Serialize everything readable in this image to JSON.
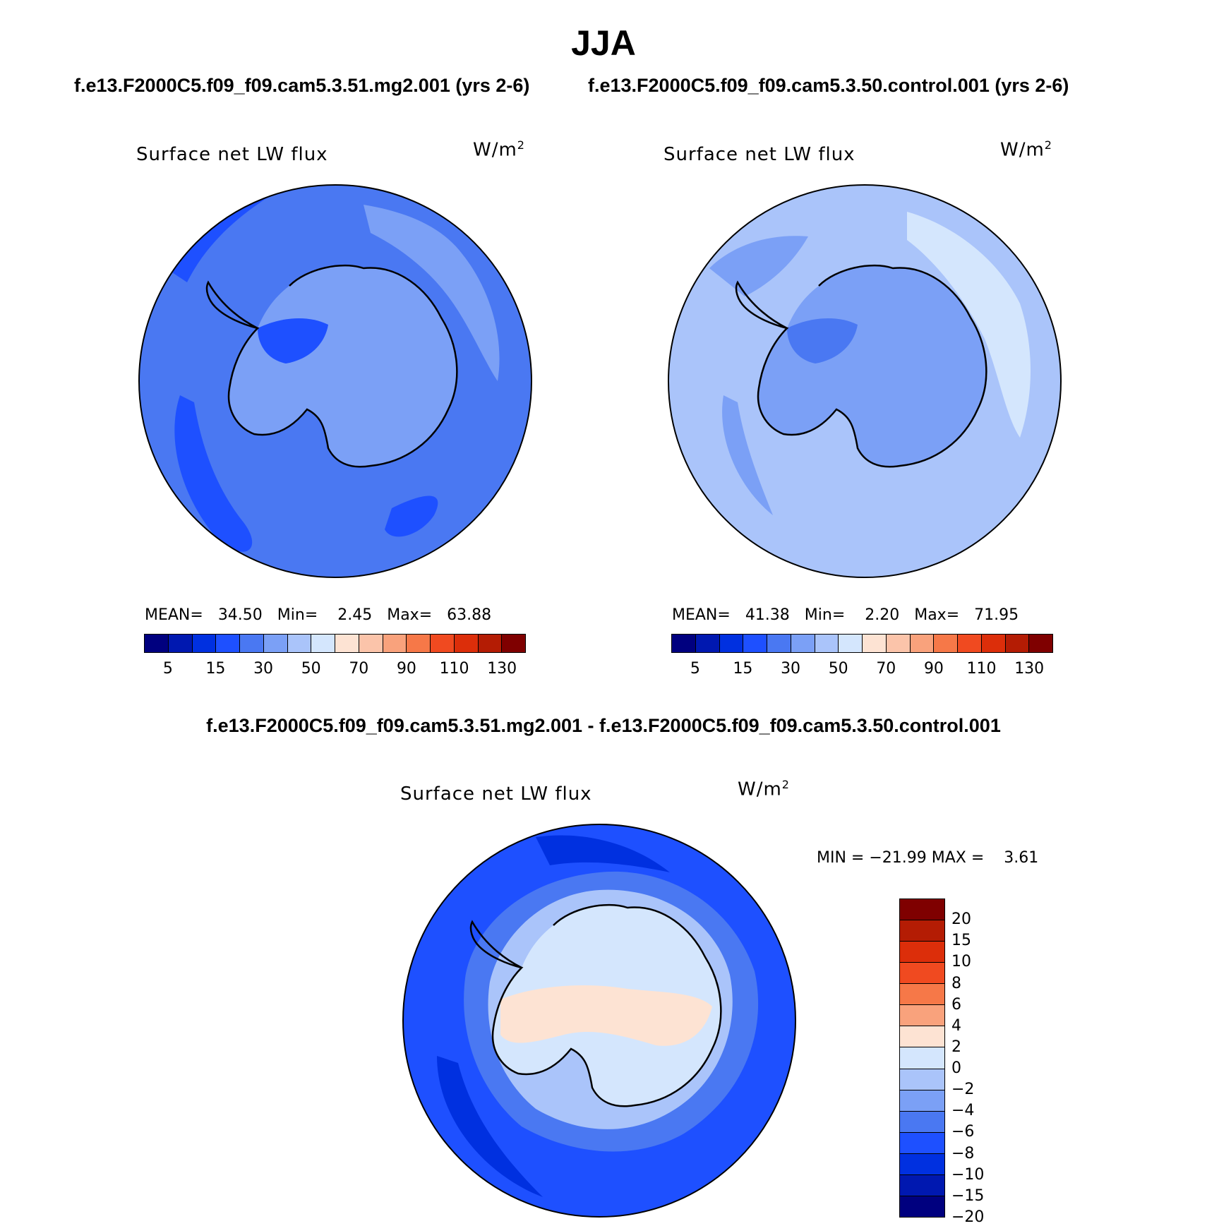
{
  "title": "JJA",
  "panels": {
    "left": {
      "case_label": "f.e13.F2000C5.f09_f09.cam5.3.51.mg2.001 (yrs 2-6)",
      "variable": "Surface net LW flux",
      "units_base": "W/m",
      "units_exp": "2",
      "stats": {
        "mean_label": "MEAN=",
        "mean": "34.50",
        "min_label": "Min=",
        "min": "2.45",
        "max_label": "Max=",
        "max": "63.88"
      }
    },
    "right": {
      "case_label": "f.e13.F2000C5.f09_f09.cam5.3.50.control.001 (yrs 2-6)",
      "variable": "Surface net LW flux",
      "units_base": "W/m",
      "units_exp": "2",
      "stats": {
        "mean_label": "MEAN=",
        "mean": "41.38",
        "min_label": "Min=",
        "min": "2.20",
        "max_label": "Max=",
        "max": "71.95"
      }
    },
    "diff": {
      "case_label": "f.e13.F2000C5.f09_f09.cam5.3.51.mg2.001 - f.e13.F2000C5.f09_f09.cam5.3.50.control.001",
      "variable": "Surface net LW flux",
      "units_base": "W/m",
      "units_exp": "2",
      "stats_text": "MIN = −21.99 MAX =    3.61"
    }
  },
  "colorbar_abs": {
    "colors": [
      "#00007f",
      "#0018b0",
      "#0030e0",
      "#1e50ff",
      "#4a78f2",
      "#7ba0f6",
      "#aac4fa",
      "#d4e6fd",
      "#fde3d3",
      "#fbc4aa",
      "#f9a27c",
      "#f67848",
      "#f04a20",
      "#dc2e0a",
      "#b41c04",
      "#7f0000"
    ],
    "ticks": [
      "5",
      "15",
      "30",
      "50",
      "70",
      "90",
      "110",
      "130"
    ]
  },
  "colorbar_diff": {
    "colors_top_to_bottom": [
      "#7f0000",
      "#b41c04",
      "#dc2e0a",
      "#f04a20",
      "#f67848",
      "#f9a27c",
      "#fde3d3",
      "#d4e6fd",
      "#aac4fa",
      "#7ba0f6",
      "#4a78f2",
      "#1e50ff",
      "#0030e0",
      "#0018b0",
      "#00007f"
    ],
    "ticks_top_to_bottom": [
      "20",
      "15",
      "10",
      "8",
      "6",
      "4",
      "2",
      "0",
      "−2",
      "−4",
      "−6",
      "−8",
      "−10",
      "−15",
      "−20"
    ]
  },
  "map_colors": {
    "left_ocean": "#4a78f2",
    "left_deep": "#1e50ff",
    "left_light": "#7ba0f6",
    "left_lighter": "#aac4fa",
    "right_ocean": "#aac4fa",
    "right_mid": "#7ba0f6",
    "right_light": "#d4e6fd",
    "diff_outer": "#1e50ff",
    "diff_deep": "#0030e0",
    "diff_mid": "#4a78f2",
    "diff_light": "#aac4fa",
    "diff_lighter": "#d4e6fd",
    "diff_positive": "#fde3d3"
  }
}
